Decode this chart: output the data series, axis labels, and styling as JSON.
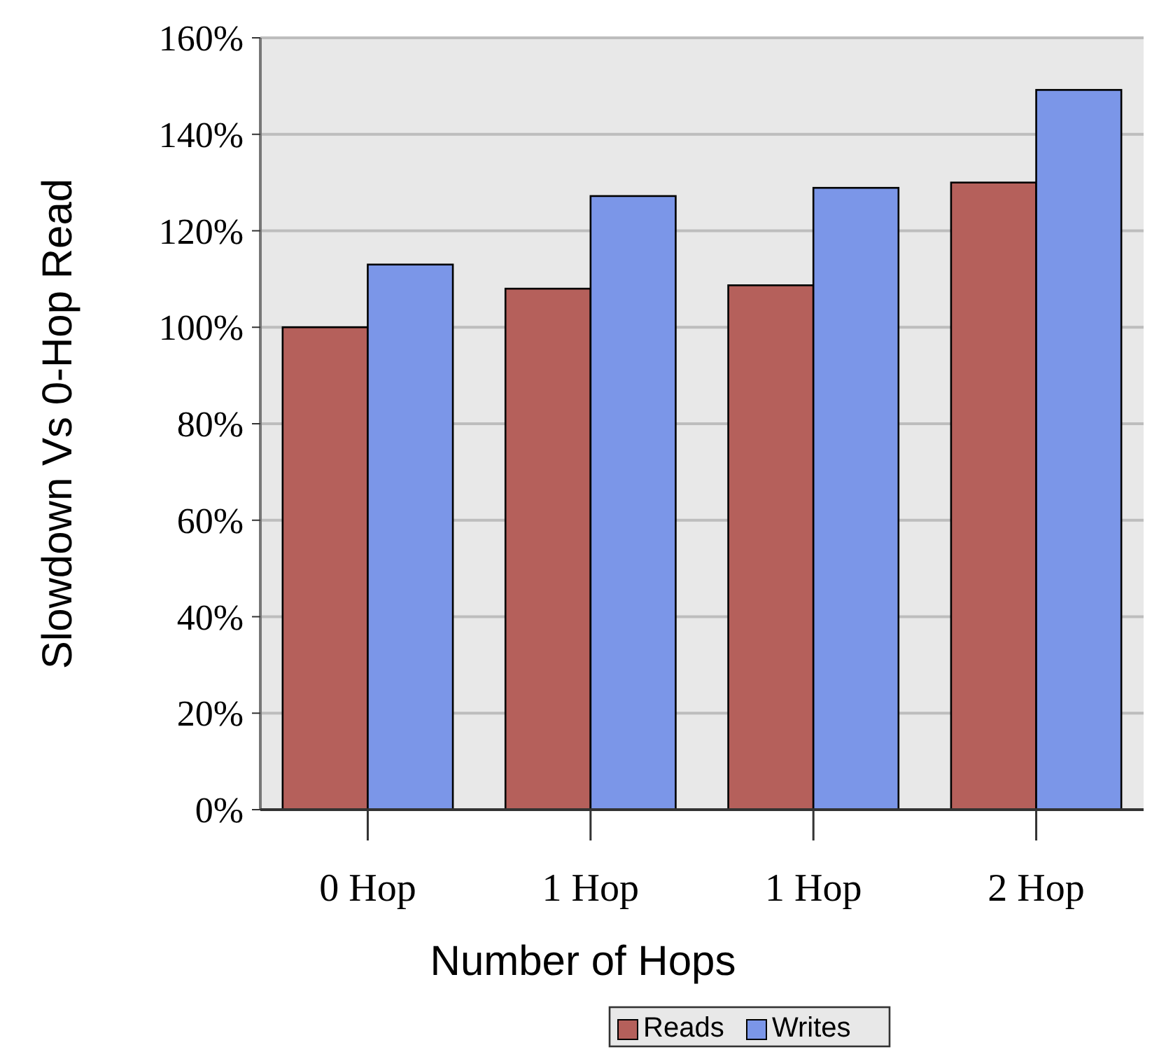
{
  "chart_data": {
    "type": "bar",
    "xlabel": "Number of Hops",
    "ylabel": "Slowdown Vs 0-Hop Read",
    "categories": [
      "0 Hop",
      "1 Hop",
      "1 Hop",
      "2 Hop"
    ],
    "series": [
      {
        "name": "Reads",
        "color": "#b5605b",
        "values": [
          100,
          108,
          108.7,
          130
        ]
      },
      {
        "name": "Writes",
        "color": "#7b96e8",
        "values": [
          113,
          127.2,
          128.9,
          149.2
        ]
      }
    ],
    "ylim": [
      0,
      160
    ],
    "yticks": [
      {
        "value": 0,
        "label": "0%"
      },
      {
        "value": 20,
        "label": "20%"
      },
      {
        "value": 40,
        "label": "40%"
      },
      {
        "value": 60,
        "label": "60%"
      },
      {
        "value": 80,
        "label": "80%"
      },
      {
        "value": 100,
        "label": "100%"
      },
      {
        "value": 120,
        "label": "120%"
      },
      {
        "value": 140,
        "label": "140%"
      },
      {
        "value": 160,
        "label": "160%"
      }
    ],
    "grid": "y",
    "legend": "bottom"
  }
}
